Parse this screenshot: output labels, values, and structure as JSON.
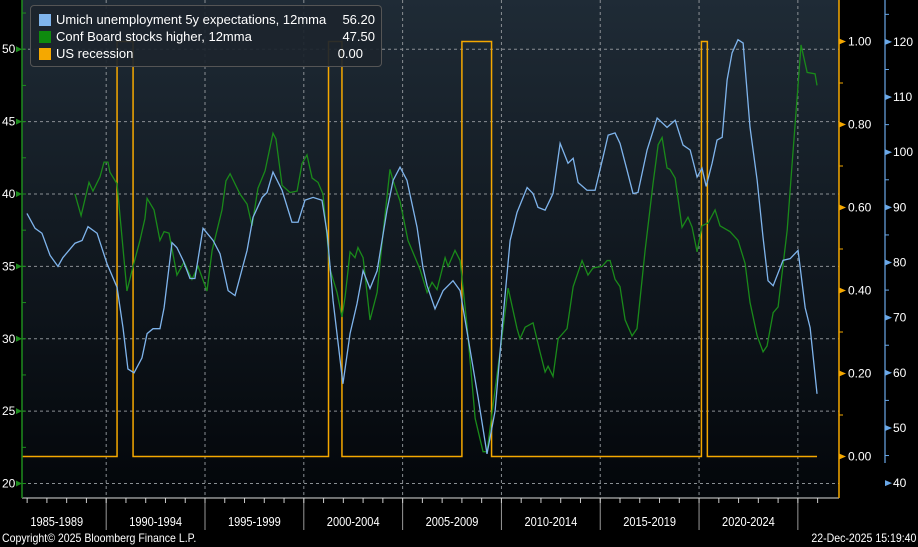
{
  "chart_data": {
    "type": "line",
    "title": "",
    "xlabel": "",
    "x_tick_labels": [
      "1985-1989",
      "1990-1994",
      "1995-1999",
      "2000-2004",
      "2005-2009",
      "2010-2014",
      "2015-2019",
      "2020-2024"
    ],
    "xlim": [
      1985.74,
      2026.93
    ],
    "grid": true,
    "legend_position": "top-left",
    "axes": {
      "left": {
        "min": 19,
        "max": 53.4,
        "ticks": [
          20,
          25,
          30,
          35,
          40,
          45,
          50
        ],
        "color": "#1e8c1e"
      },
      "right_inner": {
        "min": -0.1,
        "max": 1.1,
        "ticks": [
          "0.00",
          "0.20",
          "0.40",
          "0.60",
          "0.80",
          "1.00"
        ],
        "color": "#f5a800"
      },
      "right_outer": {
        "min": 37.3,
        "max": 127.6,
        "ticks": [
          40,
          50,
          60,
          70,
          80,
          90,
          100,
          110,
          120
        ],
        "color": "#6aa8e8"
      }
    },
    "series": [
      {
        "name": "Umich unemployment 5y expectations, 12mma",
        "last_value": "56.20",
        "color": "#7fb4ec",
        "axis": "right_outer",
        "points": [
          [
            1985.99,
            88.9
          ],
          [
            1986.4,
            86.2
          ],
          [
            1986.75,
            85.3
          ],
          [
            1987.16,
            81.3
          ],
          [
            1987.56,
            79.3
          ],
          [
            1987.81,
            80.9
          ],
          [
            1988.42,
            83.5
          ],
          [
            1988.78,
            84.0
          ],
          [
            1989.08,
            86.5
          ],
          [
            1989.54,
            85.3
          ],
          [
            1990.04,
            79.8
          ],
          [
            1990.55,
            75.5
          ],
          [
            1990.85,
            68.2
          ],
          [
            1991.1,
            60.7
          ],
          [
            1991.41,
            60.0
          ],
          [
            1991.81,
            62.7
          ],
          [
            1992.07,
            67.1
          ],
          [
            1992.37,
            68.0
          ],
          [
            1992.72,
            68.0
          ],
          [
            1992.93,
            71.8
          ],
          [
            1993.33,
            83.6
          ],
          [
            1993.58,
            82.7
          ],
          [
            1993.89,
            80.4
          ],
          [
            1994.24,
            77.1
          ],
          [
            1994.49,
            77.1
          ],
          [
            1994.9,
            86.2
          ],
          [
            1995.41,
            84.0
          ],
          [
            1995.76,
            81.6
          ],
          [
            1996.17,
            74.9
          ],
          [
            1996.52,
            74.0
          ],
          [
            1997.13,
            82.2
          ],
          [
            1997.43,
            88.2
          ],
          [
            1997.89,
            91.8
          ],
          [
            1998.14,
            92.7
          ],
          [
            1998.44,
            96.4
          ],
          [
            1998.9,
            93.1
          ],
          [
            1999.4,
            87.3
          ],
          [
            1999.71,
            87.3
          ],
          [
            2000.06,
            91.3
          ],
          [
            2000.47,
            91.8
          ],
          [
            2000.92,
            91.3
          ],
          [
            2001.18,
            85.3
          ],
          [
            2001.48,
            73.1
          ],
          [
            2001.98,
            58.0
          ],
          [
            2002.34,
            67.1
          ],
          [
            2002.69,
            72.5
          ],
          [
            2003.0,
            78.5
          ],
          [
            2003.35,
            75.3
          ],
          [
            2003.71,
            78.5
          ],
          [
            2004.21,
            89.5
          ],
          [
            2004.52,
            94.9
          ],
          [
            2004.87,
            97.3
          ],
          [
            2005.22,
            94.9
          ],
          [
            2005.73,
            86.4
          ],
          [
            2006.03,
            79.1
          ],
          [
            2006.24,
            75.8
          ],
          [
            2006.64,
            71.6
          ],
          [
            2007.05,
            74.9
          ],
          [
            2007.55,
            76.7
          ],
          [
            2007.91,
            74.9
          ],
          [
            2008.31,
            66.4
          ],
          [
            2008.82,
            55.5
          ],
          [
            2009.27,
            45.3
          ],
          [
            2009.68,
            53.1
          ],
          [
            2010.08,
            70.0
          ],
          [
            2010.44,
            84.0
          ],
          [
            2010.79,
            89.1
          ],
          [
            2011.3,
            93.6
          ],
          [
            2011.6,
            92.5
          ],
          [
            2011.85,
            90.0
          ],
          [
            2012.21,
            89.5
          ],
          [
            2012.61,
            92.5
          ],
          [
            2012.97,
            101.6
          ],
          [
            2013.37,
            98.0
          ],
          [
            2013.63,
            98.9
          ],
          [
            2013.88,
            94.5
          ],
          [
            2014.33,
            93.1
          ],
          [
            2014.74,
            93.1
          ],
          [
            2015.14,
            99.1
          ],
          [
            2015.4,
            103.1
          ],
          [
            2015.75,
            103.5
          ],
          [
            2016.0,
            101.6
          ],
          [
            2016.36,
            96.7
          ],
          [
            2016.66,
            92.5
          ],
          [
            2016.91,
            92.7
          ],
          [
            2017.37,
            100.4
          ],
          [
            2017.88,
            106.2
          ],
          [
            2018.38,
            104.5
          ],
          [
            2018.79,
            105.8
          ],
          [
            2019.19,
            101.3
          ],
          [
            2019.55,
            100.4
          ],
          [
            2019.9,
            95.5
          ],
          [
            2020.15,
            97.1
          ],
          [
            2020.36,
            93.8
          ],
          [
            2020.66,
            98.0
          ],
          [
            2020.91,
            102.2
          ],
          [
            2021.17,
            102.7
          ],
          [
            2021.42,
            113.1
          ],
          [
            2021.67,
            118.0
          ],
          [
            2021.97,
            120.4
          ],
          [
            2022.23,
            119.8
          ],
          [
            2022.58,
            104.5
          ],
          [
            2022.94,
            94.9
          ],
          [
            2023.24,
            84.5
          ],
          [
            2023.49,
            76.7
          ],
          [
            2023.75,
            75.8
          ],
          [
            2024.25,
            80.4
          ],
          [
            2024.61,
            80.7
          ],
          [
            2025.01,
            82.2
          ],
          [
            2025.37,
            71.8
          ],
          [
            2025.62,
            68.2
          ],
          [
            2025.97,
            56.2
          ]
        ]
      },
      {
        "name": "Conf Board stocks higher, 12mma",
        "last_value": "47.50",
        "color": "#1a8a1a",
        "axis": "left",
        "points": [
          [
            1988.42,
            40.0
          ],
          [
            1988.73,
            38.5
          ],
          [
            1989.13,
            40.8
          ],
          [
            1989.33,
            40.2
          ],
          [
            1989.69,
            41.2
          ],
          [
            1989.89,
            42.2
          ],
          [
            1990.09,
            42.2
          ],
          [
            1990.19,
            41.5
          ],
          [
            1990.55,
            40.7
          ],
          [
            1991.05,
            33.3
          ],
          [
            1991.36,
            35.0
          ],
          [
            1991.71,
            36.8
          ],
          [
            1991.96,
            38.3
          ],
          [
            1992.07,
            39.7
          ],
          [
            1992.42,
            38.9
          ],
          [
            1992.72,
            36.8
          ],
          [
            1992.93,
            37.4
          ],
          [
            1993.18,
            37.3
          ],
          [
            1993.58,
            34.4
          ],
          [
            1993.94,
            35.3
          ],
          [
            1994.34,
            34.1
          ],
          [
            1994.65,
            35.0
          ],
          [
            1995.1,
            33.3
          ],
          [
            1995.36,
            36.1
          ],
          [
            1995.86,
            38.9
          ],
          [
            1996.06,
            40.9
          ],
          [
            1996.27,
            41.4
          ],
          [
            1996.77,
            40.0
          ],
          [
            1997.13,
            39.3
          ],
          [
            1997.38,
            37.8
          ],
          [
            1997.68,
            40.4
          ],
          [
            1998.04,
            41.6
          ],
          [
            1998.44,
            44.2
          ],
          [
            1998.59,
            43.8
          ],
          [
            1998.9,
            40.6
          ],
          [
            1999.3,
            40.1
          ],
          [
            1999.66,
            40.2
          ],
          [
            1999.91,
            42.1
          ],
          [
            2000.16,
            42.7
          ],
          [
            2000.42,
            41.1
          ],
          [
            2000.72,
            40.8
          ],
          [
            2000.97,
            40.0
          ],
          [
            2001.33,
            34.8
          ],
          [
            2001.68,
            33.2
          ],
          [
            2001.93,
            31.5
          ],
          [
            2002.09,
            32.9
          ],
          [
            2002.34,
            36.0
          ],
          [
            2002.59,
            35.6
          ],
          [
            2002.74,
            36.3
          ],
          [
            2003.0,
            35.6
          ],
          [
            2003.35,
            31.3
          ],
          [
            2003.71,
            33.2
          ],
          [
            2004.01,
            37.3
          ],
          [
            2004.36,
            41.7
          ],
          [
            2004.52,
            40.9
          ],
          [
            2004.87,
            39.5
          ],
          [
            2005.27,
            36.8
          ],
          [
            2005.88,
            34.8
          ],
          [
            2006.24,
            33.2
          ],
          [
            2006.49,
            33.9
          ],
          [
            2006.74,
            33.4
          ],
          [
            2007.15,
            35.6
          ],
          [
            2007.3,
            35.0
          ],
          [
            2007.65,
            36.1
          ],
          [
            2007.91,
            35.4
          ],
          [
            2008.26,
            30.9
          ],
          [
            2008.67,
            24.5
          ],
          [
            2009.07,
            22.2
          ],
          [
            2009.27,
            22.2
          ],
          [
            2009.93,
            29.1
          ],
          [
            2010.34,
            33.5
          ],
          [
            2010.79,
            30.7
          ],
          [
            2010.94,
            30.0
          ],
          [
            2011.2,
            30.8
          ],
          [
            2011.6,
            31.1
          ],
          [
            2011.95,
            29.1
          ],
          [
            2012.21,
            27.7
          ],
          [
            2012.36,
            28.1
          ],
          [
            2012.61,
            27.4
          ],
          [
            2012.87,
            30.0
          ],
          [
            2013.32,
            30.7
          ],
          [
            2013.63,
            33.6
          ],
          [
            2014.08,
            35.4
          ],
          [
            2014.38,
            34.4
          ],
          [
            2014.64,
            34.9
          ],
          [
            2015.09,
            35.0
          ],
          [
            2015.35,
            35.4
          ],
          [
            2015.5,
            35.4
          ],
          [
            2015.75,
            34.1
          ],
          [
            2016.0,
            33.6
          ],
          [
            2016.26,
            31.3
          ],
          [
            2016.61,
            30.2
          ],
          [
            2016.86,
            30.7
          ],
          [
            2017.27,
            36.1
          ],
          [
            2017.67,
            40.7
          ],
          [
            2017.93,
            43.4
          ],
          [
            2018.13,
            43.9
          ],
          [
            2018.38,
            41.8
          ],
          [
            2018.53,
            41.7
          ],
          [
            2018.79,
            41.1
          ],
          [
            2019.14,
            37.7
          ],
          [
            2019.44,
            38.4
          ],
          [
            2019.65,
            37.7
          ],
          [
            2019.9,
            36.0
          ],
          [
            2020.15,
            37.8
          ],
          [
            2020.46,
            38.0
          ],
          [
            2020.81,
            38.9
          ],
          [
            2021.06,
            37.8
          ],
          [
            2021.57,
            37.4
          ],
          [
            2021.97,
            36.8
          ],
          [
            2022.33,
            35.2
          ],
          [
            2022.58,
            32.5
          ],
          [
            2022.94,
            30.2
          ],
          [
            2023.24,
            29.1
          ],
          [
            2023.44,
            29.5
          ],
          [
            2023.75,
            31.8
          ],
          [
            2024.0,
            32.2
          ],
          [
            2024.46,
            37.5
          ],
          [
            2024.71,
            42.1
          ],
          [
            2024.96,
            46.6
          ],
          [
            2025.16,
            50.3
          ],
          [
            2025.47,
            48.4
          ],
          [
            2025.87,
            48.3
          ],
          [
            2025.97,
            47.5
          ]
        ]
      },
      {
        "name": "US recession",
        "last_value": "0.00",
        "color": "#f5a800",
        "axis": "right_inner",
        "start": 1985.74,
        "end": 2025.97,
        "periods": [
          [
            1990.55,
            1991.36
          ],
          [
            2001.25,
            2001.93
          ],
          [
            2008.0,
            2009.5
          ],
          [
            2020.12,
            2020.42
          ]
        ]
      }
    ]
  },
  "footer": {
    "copyright": "Copyright© 2025 Bloomberg Finance L.P.",
    "timestamp": "22-Dec-2025 15:19:40"
  }
}
